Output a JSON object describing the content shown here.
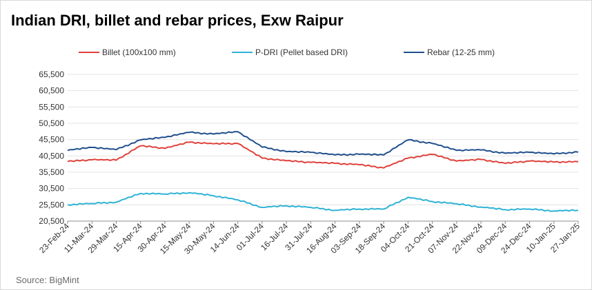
{
  "title": "Indian DRI, billet and rebar prices, Exw Raipur",
  "source": "Source: BigMint",
  "colors": {
    "billet": "#e0403a",
    "pdri": "#2eb3d6",
    "rebar": "#1f4e8c",
    "grid": "#e3e3e3"
  },
  "chart_data": {
    "type": "line",
    "title": "Indian DRI, billet and rebar prices, Exw Raipur",
    "xlabel": "",
    "ylabel": "",
    "ylim": [
      20500,
      65500
    ],
    "yticks": [
      "65,500",
      "60,500",
      "55,500",
      "50,500",
      "45,500",
      "40,500",
      "35,500",
      "30,500",
      "25,500",
      "20,500"
    ],
    "ytick_values": [
      65500,
      60500,
      55500,
      50500,
      45500,
      40500,
      35500,
      30500,
      25500,
      20500
    ],
    "categories": [
      "23-Feb-24",
      "11-Mar-24",
      "29-Mar-24",
      "15-Apr-24",
      "30-Apr-24",
      "15-May-24",
      "30-May-24",
      "14-Jun-24",
      "01-Jul-24",
      "16-Jul-24",
      "31-Jul-24",
      "16-Aug-24",
      "03-Sep-24",
      "18-Sep-24",
      "04-Oct-24",
      "21-Oct-24",
      "07-Nov-24",
      "22-Nov-24",
      "09-Dec-24",
      "24-Dec-24",
      "10-Jan-25",
      "27-Jan-25"
    ],
    "legend_position": "top",
    "grid": true,
    "series": [
      {
        "name": "Billet (100x100 mm)",
        "color_key": "billet",
        "values": [
          38800,
          39300,
          39200,
          43600,
          42800,
          44700,
          44200,
          44300,
          39800,
          39000,
          38500,
          38200,
          37800,
          36800,
          39800,
          41000,
          38900,
          39400,
          38200,
          38900,
          38600,
          38700
        ]
      },
      {
        "name": "P-DRI (Pellet based DRI)",
        "color_key": "pdri",
        "values": [
          25500,
          25900,
          26300,
          29000,
          28800,
          29200,
          28300,
          27000,
          24700,
          25200,
          24700,
          23800,
          24200,
          24200,
          27800,
          26500,
          25800,
          24800,
          24000,
          24200,
          23600,
          23800
        ]
      },
      {
        "name": "Rebar (12-25 mm)",
        "color_key": "rebar",
        "values": [
          42200,
          43100,
          42400,
          45400,
          46200,
          47700,
          47200,
          47900,
          43200,
          41800,
          41600,
          40800,
          41000,
          40800,
          45400,
          44300,
          42200,
          42300,
          41300,
          41600,
          41100,
          41700
        ]
      }
    ]
  }
}
